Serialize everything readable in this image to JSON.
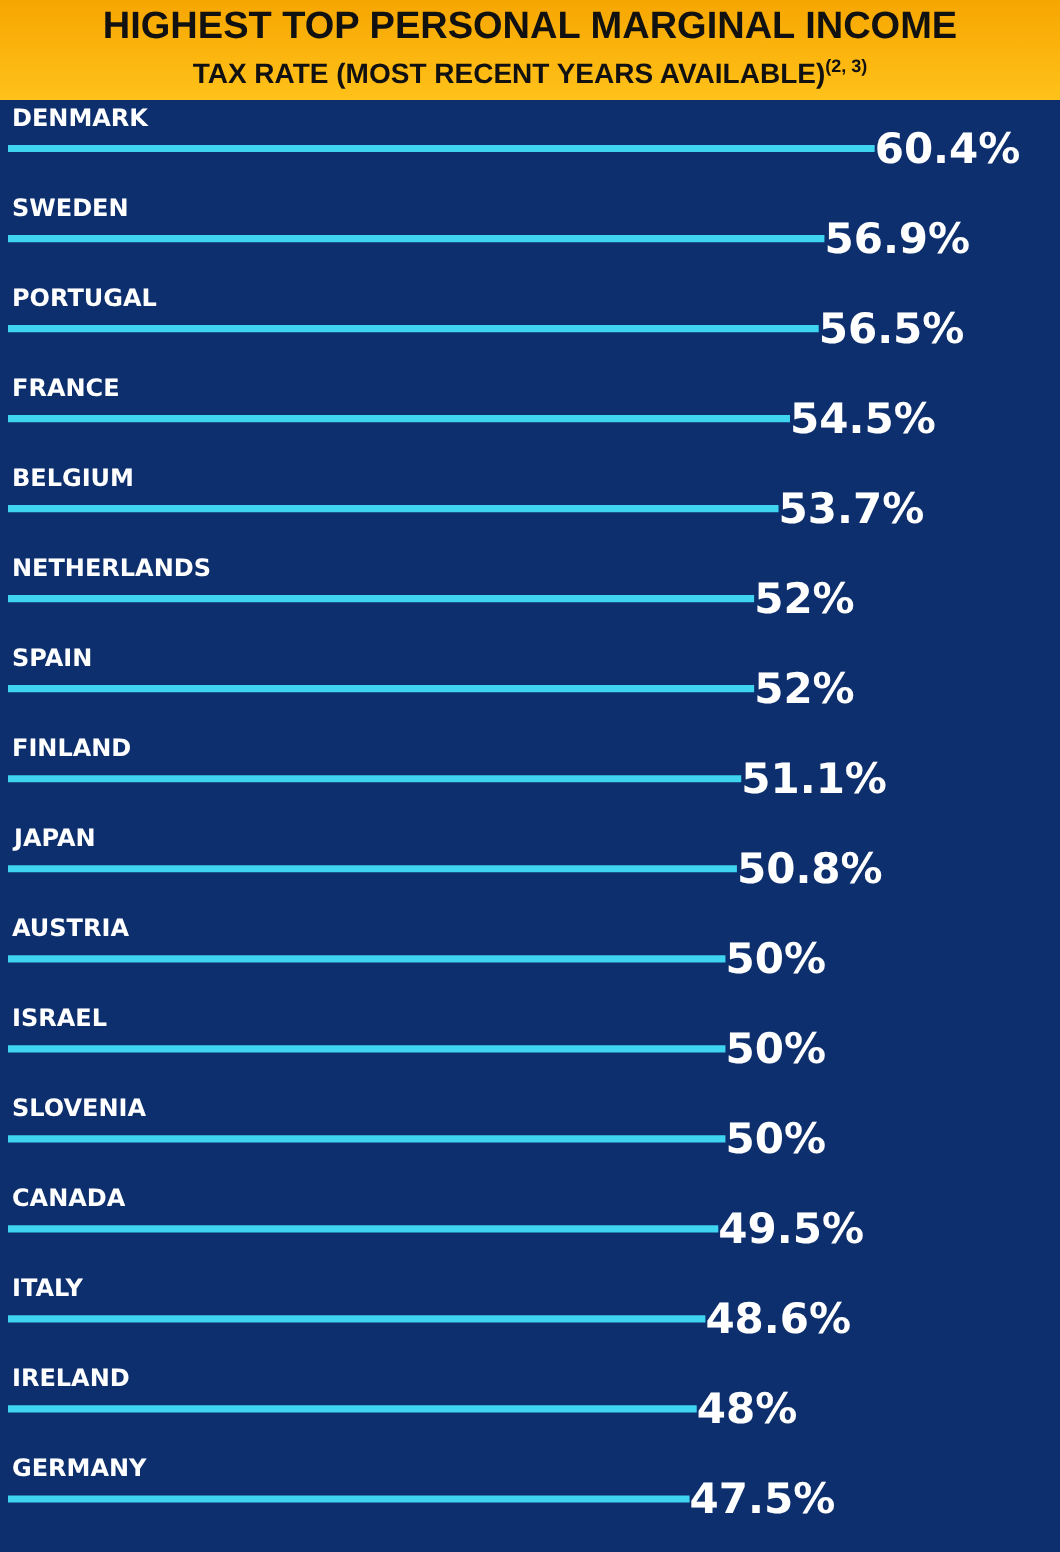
{
  "chart_data": {
    "type": "bar",
    "orientation": "horizontal",
    "title": "HIGHEST TOP PERSONAL MARGINAL INCOME",
    "subtitle": "TAX RATE (MOST RECENT YEARS AVAILABLE)$^{(2, 3)}$",
    "categories": [
      "DENMARK",
      "SWEDEN",
      "PORTUGAL",
      "FRANCE",
      "BELGIUM",
      "NETHERLANDS",
      "SPAIN",
      "FINLAND",
      "JAPAN",
      "AUSTRIA",
      "ISRAEL",
      "SLOVENIA",
      "CANADA",
      "ITALY",
      "IRELAND",
      "GERMANY"
    ],
    "values": [
      60.4,
      56.9,
      56.5,
      54.5,
      53.7,
      52,
      52,
      51.1,
      50.8,
      50,
      50,
      50,
      49.5,
      48.6,
      48,
      47.5
    ],
    "value_labels": [
      "60.4%",
      "56.9%",
      "56.5%",
      "54.5%",
      "53.7%",
      "52%",
      "52%",
      "51.1%",
      "50.8%",
      "50%",
      "50%",
      "50%",
      "49.5%",
      "48.6%",
      "48%",
      "47.5%"
    ],
    "color": "#3fd4ef"
  }
}
